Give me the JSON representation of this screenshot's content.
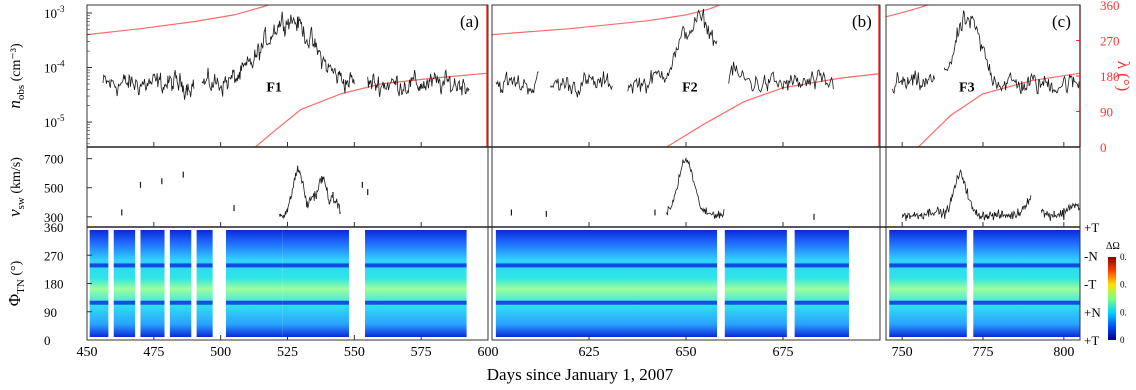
{
  "figure": {
    "xlabel": "Days since January 1, 2007"
  },
  "colors": {
    "data_line": "#1a1a1a",
    "lambda_line": "#ff6b6b",
    "lambda_axis": "#ff3333",
    "axis": "#333333"
  },
  "chart_data": [
    {
      "type": "line",
      "row": "density",
      "ylabel_main": "n",
      "ylabel_sub": "obs",
      "ylabel_unit": "(cm⁻³)",
      "yscale": "log",
      "ylim": [
        3.5e-06,
        0.0014
      ],
      "yticks": [
        {
          "v": 0.001,
          "base": "10",
          "exp": "-3"
        },
        {
          "v": 0.0001,
          "base": "10",
          "exp": "-4"
        },
        {
          "v": 1e-05,
          "base": "10",
          "exp": "-5"
        }
      ],
      "right_axis": {
        "label": "λ (°)",
        "ylim": [
          0,
          360
        ],
        "ticks": [
          "0",
          "90",
          "180",
          "270",
          "360"
        ]
      },
      "panels": [
        {
          "letter": "(a)",
          "xlim": [
            450,
            600
          ],
          "feature": "F1",
          "feature_x": 520,
          "feature_y": 5.5e-05,
          "segments": [
            [
              456,
              490
            ],
            [
              493,
              550
            ],
            [
              555,
              593
            ]
          ],
          "bumps": [
            [
              525,
              0.0008,
              9
            ]
          ],
          "lambda_curves": [
            {
              "x": [
                450,
                470,
                490,
                505,
                513,
                518,
                520,
                521
              ],
              "deg": [
                285,
                300,
                318,
                335,
                350,
                360,
                375,
                390
              ]
            },
            {
              "x": [
                513,
                520,
                530,
                545,
                560,
                580,
                600
              ],
              "deg": [
                0,
                40,
                95,
                135,
                160,
                175,
                187
              ]
            }
          ]
        },
        {
          "letter": "(b)",
          "xlim": [
            600,
            700
          ],
          "feature": "F2",
          "feature_x": 651,
          "feature_y": 5.5e-05,
          "segments": [
            [
              601,
              612
            ],
            [
              615,
              631
            ],
            [
              635,
              658
            ],
            [
              661,
              688
            ]
          ],
          "bumps": [
            [
              653,
              0.0007,
              5
            ]
          ],
          "lambda_curves": [
            {
              "x": [
                600,
                620,
                640,
                650,
                656,
                660,
                662
              ],
              "deg": [
                285,
                300,
                320,
                335,
                350,
                365,
                380
              ]
            },
            {
              "x": [
                645,
                655,
                665,
                675,
                690,
                700
              ],
              "deg": [
                0,
                60,
                115,
                150,
                175,
                186
              ]
            }
          ]
        },
        {
          "letter": "(c)",
          "xlim": [
            745,
            805
          ],
          "feature": "F3",
          "feature_x": 770,
          "feature_y": 5.5e-05,
          "segments": [
            [
              747,
              760
            ],
            [
              763,
              805
            ]
          ],
          "bumps": [
            [
              770,
              0.0007,
              4
            ]
          ],
          "lambda_curves": [
            {
              "x": [
                745,
                752,
                758,
                761,
                763
              ],
              "deg": [
                330,
                345,
                360,
                378,
                395
              ]
            },
            {
              "x": [
                755,
                765,
                775,
                790,
                805
              ],
              "deg": [
                0,
                80,
                135,
                168,
                187
              ]
            }
          ]
        }
      ]
    },
    {
      "type": "line",
      "row": "solar_wind",
      "ylabel_main": "v",
      "ylabel_sub": "sw",
      "ylabel_unit": "(km/s)",
      "ylim": [
        230,
        780
      ],
      "yticks": [
        300,
        500,
        700
      ],
      "panels": [
        {
          "xlim": [
            450,
            600
          ],
          "dots": [
            [
              463,
              330
            ],
            [
              470,
              520
            ],
            [
              478,
              545
            ],
            [
              486,
              590
            ],
            [
              505,
              360
            ],
            [
              542,
              450
            ],
            [
              553,
              520
            ],
            [
              555,
              470
            ]
          ],
          "segments": [
            [
              522,
              545
            ]
          ],
          "peaks": [
            [
              529,
              620
            ],
            [
              535,
              450
            ],
            [
              538,
              560
            ],
            [
              542,
              420
            ]
          ]
        },
        {
          "xlim": [
            600,
            700
          ],
          "dots": [
            [
              605,
              330
            ],
            [
              614,
              320
            ],
            [
              642,
              330
            ],
            [
              683,
              300
            ]
          ],
          "segments": [
            [
              645,
              660
            ]
          ],
          "peaks": [
            [
              650,
              690
            ],
            [
              657,
              320
            ]
          ]
        },
        {
          "xlim": [
            745,
            805
          ],
          "dots": [
            [
              797,
              320
            ],
            [
              800,
              300
            ]
          ],
          "segments": [
            [
              750,
              790
            ],
            [
              793,
              805
            ]
          ],
          "peaks": [
            [
              760,
              340
            ],
            [
              768,
              590
            ],
            [
              780,
              300
            ],
            [
              790,
              430
            ],
            [
              803,
              380
            ]
          ]
        }
      ]
    },
    {
      "type": "heatmap",
      "row": "phi",
      "ylabel_main": "Φ",
      "ylabel_sub": "TN",
      "ylabel_unit": "(°)",
      "ylim": [
        0,
        360
      ],
      "yticks": [
        0,
        90,
        180,
        270,
        360
      ],
      "right_labels": [
        "+T",
        "-N",
        "-T",
        "+N",
        "+T"
      ],
      "colorbar": {
        "title": "ΔΩ",
        "ticks": [
          "0",
          "0.",
          "0.",
          "0."
        ],
        "colors": [
          "#00008f",
          "#0050ff",
          "#00d5ff",
          "#7dff7d",
          "#ffe000",
          "#ff4000",
          "#8b0000"
        ]
      },
      "panels": [
        {
          "xlim": [
            450,
            600
          ],
          "columns": [
            [
              451,
              458
            ],
            [
              460,
              468
            ],
            [
              470,
              479
            ],
            [
              481,
              489
            ],
            [
              491,
              497
            ],
            [
              502,
              523
            ],
            [
              523,
              548
            ],
            [
              554,
              592
            ]
          ]
        },
        {
          "xlim": [
            600,
            700
          ],
          "columns": [
            [
              601,
              658
            ],
            [
              660,
              676
            ],
            [
              678,
              692
            ]
          ]
        },
        {
          "xlim": [
            745,
            805
          ],
          "columns": [
            [
              746,
              770
            ],
            [
              772,
              805
            ]
          ]
        }
      ]
    }
  ],
  "x_axis": {
    "ticks": [
      "450",
      "475",
      "500",
      "525",
      "550",
      "575",
      "600",
      "625",
      "650",
      "675",
      "750",
      "775",
      "800"
    ]
  }
}
